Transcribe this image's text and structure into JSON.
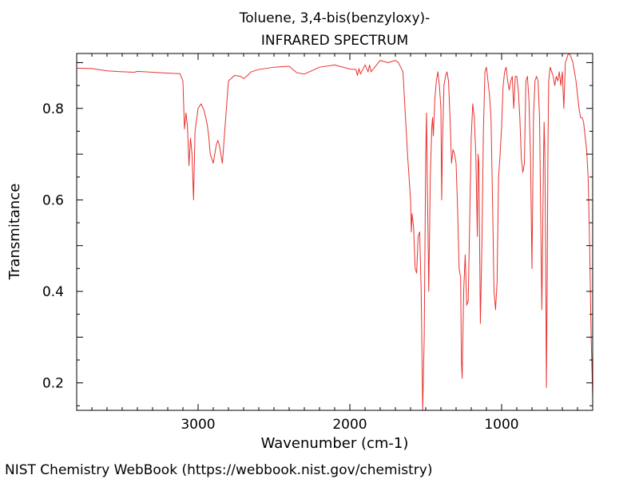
{
  "chart_data": {
    "type": "line",
    "title": "Toluene, 3,4-bis(benzyloxy)-",
    "subtitle": "INFRARED SPECTRUM",
    "xlabel": "Wavenumber (cm-1)",
    "ylabel": "Transmitance",
    "xlim": [
      3800,
      400
    ],
    "ylim": [
      0.14,
      0.92
    ],
    "x_ticks": [
      3000,
      2000,
      1000
    ],
    "x_tick_labels": [
      "3000",
      "2000",
      "1000"
    ],
    "y_ticks": [
      0.2,
      0.4,
      0.6,
      0.8
    ],
    "y_tick_labels": [
      "0.2",
      "0.4",
      "0.6",
      "0.8"
    ],
    "grid": false,
    "line_color": "#e8322f",
    "series": [
      {
        "x": [
          3800,
          3700,
          3600,
          3500,
          3420,
          3400,
          3300,
          3200,
          3120,
          3100,
          3090,
          3080,
          3070,
          3060,
          3050,
          3040,
          3030,
          3020,
          3000,
          2980,
          2960,
          2940,
          2930,
          2920,
          2900,
          2880,
          2870,
          2860,
          2840,
          2800,
          2760,
          2720,
          2700,
          2680,
          2650,
          2600,
          2500,
          2400,
          2350,
          2300,
          2200,
          2100,
          2000,
          1960,
          1950,
          1940,
          1930,
          1900,
          1880,
          1870,
          1860,
          1800,
          1750,
          1700,
          1680,
          1650,
          1620,
          1600,
          1595,
          1590,
          1580,
          1570,
          1560,
          1550,
          1540,
          1530,
          1520,
          1510,
          1500,
          1495,
          1490,
          1480,
          1470,
          1460,
          1455,
          1450,
          1440,
          1430,
          1420,
          1410,
          1400,
          1395,
          1390,
          1380,
          1370,
          1360,
          1350,
          1340,
          1330,
          1320,
          1310,
          1300,
          1290,
          1280,
          1270,
          1265,
          1260,
          1250,
          1240,
          1230,
          1220,
          1200,
          1190,
          1180,
          1170,
          1160,
          1155,
          1150,
          1140,
          1130,
          1120,
          1110,
          1100,
          1090,
          1080,
          1070,
          1060,
          1050,
          1040,
          1030,
          1020,
          1010,
          1000,
          990,
          980,
          970,
          960,
          950,
          940,
          930,
          920,
          910,
          900,
          890,
          880,
          870,
          860,
          850,
          840,
          830,
          820,
          810,
          800,
          790,
          780,
          770,
          760,
          750,
          740,
          735,
          730,
          725,
          720,
          715,
          710,
          705,
          700,
          695,
          690,
          680,
          670,
          660,
          650,
          640,
          630,
          620,
          610,
          600,
          590,
          580,
          570,
          560,
          550,
          540,
          530,
          520,
          510,
          500,
          490,
          480,
          470,
          460,
          450,
          440,
          430,
          420,
          410,
          400
        ],
        "y": [
          0.888,
          0.887,
          0.882,
          0.88,
          0.879,
          0.881,
          0.879,
          0.877,
          0.876,
          0.86,
          0.755,
          0.79,
          0.76,
          0.675,
          0.735,
          0.7,
          0.6,
          0.75,
          0.8,
          0.81,
          0.795,
          0.765,
          0.74,
          0.7,
          0.68,
          0.72,
          0.73,
          0.72,
          0.68,
          0.86,
          0.872,
          0.87,
          0.865,
          0.87,
          0.88,
          0.885,
          0.89,
          0.892,
          0.878,
          0.875,
          0.89,
          0.895,
          0.886,
          0.885,
          0.872,
          0.887,
          0.875,
          0.895,
          0.88,
          0.895,
          0.88,
          0.905,
          0.9,
          0.905,
          0.9,
          0.88,
          0.7,
          0.6,
          0.53,
          0.57,
          0.54,
          0.45,
          0.44,
          0.52,
          0.53,
          0.4,
          0.14,
          0.3,
          0.7,
          0.79,
          0.65,
          0.4,
          0.65,
          0.76,
          0.78,
          0.74,
          0.82,
          0.86,
          0.88,
          0.85,
          0.8,
          0.6,
          0.72,
          0.85,
          0.87,
          0.88,
          0.86,
          0.78,
          0.68,
          0.71,
          0.7,
          0.68,
          0.58,
          0.45,
          0.43,
          0.25,
          0.21,
          0.4,
          0.48,
          0.37,
          0.38,
          0.74,
          0.81,
          0.78,
          0.7,
          0.52,
          0.7,
          0.68,
          0.33,
          0.5,
          0.75,
          0.88,
          0.89,
          0.86,
          0.83,
          0.78,
          0.6,
          0.4,
          0.36,
          0.42,
          0.65,
          0.7,
          0.76,
          0.85,
          0.88,
          0.89,
          0.86,
          0.84,
          0.86,
          0.87,
          0.8,
          0.87,
          0.87,
          0.84,
          0.78,
          0.69,
          0.66,
          0.68,
          0.86,
          0.87,
          0.82,
          0.7,
          0.45,
          0.78,
          0.86,
          0.87,
          0.86,
          0.78,
          0.5,
          0.36,
          0.5,
          0.66,
          0.77,
          0.7,
          0.5,
          0.19,
          0.4,
          0.7,
          0.86,
          0.89,
          0.88,
          0.87,
          0.85,
          0.87,
          0.86,
          0.88,
          0.85,
          0.88,
          0.8,
          0.9,
          0.91,
          0.92,
          0.918,
          0.91,
          0.9,
          0.88,
          0.86,
          0.83,
          0.8,
          0.78,
          0.78,
          0.77,
          0.74,
          0.71,
          0.65,
          0.5,
          0.3,
          0.17
        ]
      }
    ],
    "footer": "NIST Chemistry WebBook (https://webbook.nist.gov/chemistry)"
  }
}
